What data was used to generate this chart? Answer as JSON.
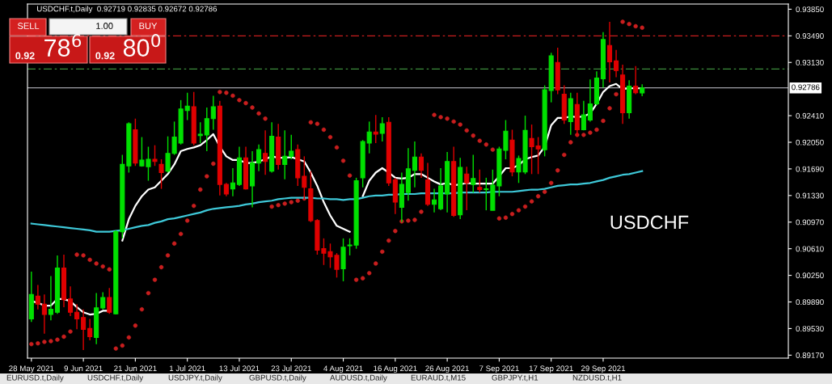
{
  "chart_data": {
    "type": "candlestick",
    "title": "USDCHF.t,Daily  0.92719 0.92835 0.92672 0.92786",
    "categories": [
      "28 May 2021",
      null,
      null,
      null,
      null,
      null,
      null,
      null,
      "9 Jun 2021",
      null,
      null,
      null,
      null,
      null,
      null,
      null,
      "21 Jun 2021",
      null,
      null,
      null,
      null,
      null,
      null,
      null,
      "1 Jul 2021",
      null,
      null,
      null,
      null,
      null,
      null,
      null,
      "13 Jul 2021",
      null,
      null,
      null,
      null,
      null,
      null,
      null,
      "23 Jul 2021",
      null,
      null,
      null,
      null,
      null,
      null,
      null,
      "4 Aug 2021",
      null,
      null,
      null,
      null,
      null,
      null,
      null,
      "16 Aug 2021",
      null,
      null,
      null,
      null,
      null,
      null,
      null,
      "26 Aug 2021",
      null,
      null,
      null,
      null,
      null,
      null,
      null,
      "7 Sep 2021",
      null,
      null,
      null,
      null,
      null,
      null,
      null,
      "17 Sep 2021",
      null,
      null,
      null,
      null,
      null,
      null,
      null,
      "29 Sep 2021",
      null,
      null,
      null,
      null,
      null,
      null
    ],
    "ohlc": [
      [
        0.8966,
        0.903,
        0.8962,
        0.8999
      ],
      [
        0.8997,
        0.9012,
        0.8979,
        0.8986
      ],
      [
        0.8986,
        0.8999,
        0.8946,
        0.8972
      ],
      [
        0.8972,
        0.9024,
        0.8964,
        0.8979
      ],
      [
        0.8975,
        0.9052,
        0.8973,
        0.9035
      ],
      [
        0.9035,
        0.9053,
        0.8982,
        0.8992
      ],
      [
        0.8993,
        0.901,
        0.897,
        0.8975
      ],
      [
        0.8975,
        0.8986,
        0.8952,
        0.8966
      ],
      [
        0.8968,
        0.8979,
        0.8924,
        0.8952
      ],
      [
        0.8953,
        0.8966,
        0.8937,
        0.8942
      ],
      [
        0.8941,
        0.9001,
        0.8932,
        0.8981
      ],
      [
        0.8981,
        0.9002,
        0.8979,
        0.8995
      ],
      [
        0.8995,
        0.9008,
        0.8973,
        0.8975
      ],
      [
        0.8973,
        0.9086,
        0.8972,
        0.9084
      ],
      [
        0.9084,
        0.9188,
        0.9075,
        0.9175
      ],
      [
        0.9173,
        0.9232,
        0.9164,
        0.923
      ],
      [
        0.9222,
        0.9237,
        0.9173,
        0.9177
      ],
      [
        0.9173,
        0.9212,
        0.9172,
        0.9181
      ],
      [
        0.9172,
        0.9199,
        0.9153,
        0.9182
      ],
      [
        0.9182,
        0.9201,
        0.9173,
        0.9179
      ],
      [
        0.9175,
        0.9182,
        0.9142,
        0.9164
      ],
      [
        0.9166,
        0.9213,
        0.9164,
        0.919
      ],
      [
        0.919,
        0.9233,
        0.9188,
        0.9212
      ],
      [
        0.9204,
        0.9262,
        0.9202,
        0.925
      ],
      [
        0.9248,
        0.9272,
        0.9235,
        0.9254
      ],
      [
        0.9253,
        0.9273,
        0.9201,
        0.9204
      ],
      [
        0.9214,
        0.9232,
        0.9204,
        0.9216
      ],
      [
        0.9215,
        0.9252,
        0.9193,
        0.9237
      ],
      [
        0.9237,
        0.9268,
        0.9222,
        0.9253
      ],
      [
        0.9254,
        0.9261,
        0.9133,
        0.9148
      ],
      [
        0.9148,
        0.915,
        0.9132,
        0.9135
      ],
      [
        0.9142,
        0.917,
        0.9132,
        0.915
      ],
      [
        0.9148,
        0.9199,
        0.9146,
        0.9184
      ],
      [
        0.9184,
        0.9199,
        0.9141,
        0.9142
      ],
      [
        0.9146,
        0.9193,
        0.9117,
        0.9177
      ],
      [
        0.9177,
        0.9202,
        0.9166,
        0.9195
      ],
      [
        0.919,
        0.9221,
        0.9161,
        0.9179
      ],
      [
        0.9166,
        0.9232,
        0.9164,
        0.9213
      ],
      [
        0.9212,
        0.923,
        0.9168,
        0.9175
      ],
      [
        0.9175,
        0.9221,
        0.9155,
        0.9186
      ],
      [
        0.9186,
        0.9215,
        0.9182,
        0.9193
      ],
      [
        0.9195,
        0.9202,
        0.9146,
        0.9157
      ],
      [
        0.9159,
        0.9186,
        0.9128,
        0.9144
      ],
      [
        0.9142,
        0.9166,
        0.9097,
        0.9099
      ],
      [
        0.9099,
        0.9101,
        0.9053,
        0.9059
      ],
      [
        0.9061,
        0.9075,
        0.9039,
        0.9055
      ],
      [
        0.9057,
        0.9068,
        0.9035,
        0.905
      ],
      [
        0.9052,
        0.9055,
        0.9022,
        0.9033
      ],
      [
        0.9034,
        0.9075,
        0.9017,
        0.9063
      ],
      [
        0.9065,
        0.9075,
        0.9052,
        0.9066
      ],
      [
        0.9066,
        0.9157,
        0.9061,
        0.9153
      ],
      [
        0.9157,
        0.9208,
        0.9144,
        0.9206
      ],
      [
        0.9204,
        0.9233,
        0.919,
        0.9219
      ],
      [
        0.9219,
        0.9242,
        0.9204,
        0.9216
      ],
      [
        0.9217,
        0.9239,
        0.9206,
        0.923
      ],
      [
        0.9232,
        0.9239,
        0.9146,
        0.915
      ],
      [
        0.9154,
        0.9157,
        0.9108,
        0.9124
      ],
      [
        0.9117,
        0.9164,
        0.9097,
        0.9148
      ],
      [
        0.9137,
        0.9197,
        0.9126,
        0.9169
      ],
      [
        0.9167,
        0.9206,
        0.9144,
        0.9185
      ],
      [
        0.9185,
        0.919,
        0.9157,
        0.9167
      ],
      [
        0.9154,
        0.9177,
        0.9119,
        0.9121
      ],
      [
        0.9121,
        0.9142,
        0.911,
        0.9127
      ],
      [
        0.9115,
        0.917,
        0.9113,
        0.9146
      ],
      [
        0.9135,
        0.9192,
        0.911,
        0.9179
      ],
      [
        0.9179,
        0.9199,
        0.9104,
        0.9106
      ],
      [
        0.9107,
        0.9184,
        0.9101,
        0.9171
      ],
      [
        0.9162,
        0.9172,
        0.9113,
        0.915
      ],
      [
        0.9148,
        0.9188,
        0.9137,
        0.9156
      ],
      [
        0.9144,
        0.9168,
        0.9137,
        0.9141
      ],
      [
        0.9141,
        0.9157,
        0.9113,
        0.9142
      ],
      [
        0.9113,
        0.9168,
        0.9113,
        0.9147
      ],
      [
        0.9146,
        0.9199,
        0.9132,
        0.9196
      ],
      [
        0.9194,
        0.9235,
        0.9182,
        0.922
      ],
      [
        0.9208,
        0.9222,
        0.9159,
        0.9165
      ],
      [
        0.9165,
        0.9187,
        0.915,
        0.9183
      ],
      [
        0.9165,
        0.9241,
        0.9162,
        0.9221
      ],
      [
        0.921,
        0.9229,
        0.9162,
        0.9199
      ],
      [
        0.92,
        0.9212,
        0.9162,
        0.9196
      ],
      [
        0.9195,
        0.9282,
        0.9186,
        0.9276
      ],
      [
        0.9275,
        0.9326,
        0.9259,
        0.9322
      ],
      [
        0.9313,
        0.9333,
        0.927,
        0.9276
      ],
      [
        0.927,
        0.9282,
        0.923,
        0.9235
      ],
      [
        0.9233,
        0.9272,
        0.9215,
        0.9264
      ],
      [
        0.9256,
        0.9272,
        0.9213,
        0.9222
      ],
      [
        0.9222,
        0.9261,
        0.9221,
        0.9242
      ],
      [
        0.9235,
        0.929,
        0.9233,
        0.9257
      ],
      [
        0.9257,
        0.9301,
        0.9255,
        0.9292
      ],
      [
        0.9291,
        0.9354,
        0.9279,
        0.9344
      ],
      [
        0.9336,
        0.9368,
        0.9286,
        0.9314
      ],
      [
        0.9315,
        0.933,
        0.9293,
        0.9302
      ],
      [
        0.9296,
        0.931,
        0.923,
        0.9245
      ],
      [
        0.9245,
        0.9289,
        0.9237,
        0.9281
      ],
      [
        0.9281,
        0.9308,
        0.927,
        0.9272
      ],
      [
        0.92719,
        0.92835,
        0.92672,
        0.92786
      ]
    ],
    "series": [
      {
        "type": "line",
        "color": "#ffffff",
        "values": [
          0.899,
          0.8988,
          0.8984,
          0.8984,
          0.8993,
          0.8993,
          0.899,
          0.8982,
          0.8975,
          0.8972,
          0.8973,
          0.8977,
          0.8977,
          null,
          0.9072,
          0.9101,
          0.9119,
          0.9132,
          0.9141,
          0.9144,
          0.9153,
          0.9162,
          0.9175,
          0.9193,
          0.9196,
          0.9198,
          0.9201,
          0.9208,
          0.9216,
          0.9199,
          0.9186,
          0.9181,
          0.9181,
          0.9177,
          0.9177,
          0.9179,
          0.9182,
          0.9186,
          0.9184,
          0.9184,
          0.9185,
          0.9182,
          0.9179,
          0.9164,
          0.9146,
          0.9124,
          0.9106,
          0.9092,
          0.9088,
          0.9084,
          null,
          0.9132,
          0.9153,
          0.9164,
          0.917,
          0.9164,
          0.9157,
          0.9156,
          0.9157,
          0.9162,
          0.9162,
          0.9157,
          0.9152,
          0.9148,
          0.915,
          0.9147,
          0.9148,
          0.915,
          0.9149,
          0.9149,
          0.9149,
          0.9149,
          0.9159,
          0.917,
          0.917,
          0.9174,
          0.9182,
          0.9185,
          0.9187,
          0.9199,
          0.9228,
          0.9238,
          0.9238,
          0.924,
          0.9239,
          0.924,
          0.9244,
          0.9257,
          0.9273,
          0.9281,
          0.9284,
          0.9277,
          0.9278,
          0.9278,
          0.9278
        ]
      },
      {
        "type": "line",
        "color": "#3ec8d8",
        "values": [
          0.9095,
          0.9094,
          0.9093,
          0.9092,
          0.9091,
          0.909,
          0.9089,
          0.9088,
          0.9087,
          0.9086,
          0.9084,
          0.9084,
          0.9084,
          0.9085,
          0.9086,
          0.9088,
          0.909,
          0.9092,
          0.9093,
          0.9096,
          0.9098,
          0.9101,
          0.9102,
          0.9104,
          0.9106,
          0.9108,
          0.911,
          0.9113,
          0.9115,
          0.9116,
          0.9117,
          0.9118,
          0.9119,
          0.9121,
          0.9122,
          0.9124,
          0.9125,
          0.9126,
          0.9128,
          0.9129,
          0.913,
          0.913,
          0.913,
          0.913,
          0.9129,
          0.9129,
          0.9128,
          0.9128,
          0.9127,
          0.9128,
          0.9128,
          0.913,
          0.9132,
          0.9133,
          0.9133,
          0.9134,
          0.9134,
          0.9135,
          0.9135,
          0.9135,
          0.9136,
          0.9136,
          0.9136,
          0.9136,
          0.9136,
          0.9136,
          0.9137,
          0.9137,
          0.9137,
          0.9137,
          0.9137,
          0.9138,
          0.9138,
          0.9138,
          0.9138,
          0.9139,
          0.914,
          0.9141,
          0.9141,
          0.9142,
          0.9144,
          0.9146,
          0.9147,
          0.9148,
          0.9148,
          0.9149,
          0.915,
          0.9152,
          0.9154,
          0.9157,
          0.9159,
          0.9161,
          0.9162,
          0.9164,
          0.9166
        ]
      },
      {
        "type": "scatter",
        "color": "#c81e1e",
        "marker": "circle",
        "values": [
          0.8932,
          0.8933,
          0.8935,
          0.8936,
          0.8938,
          0.8942,
          0.8949,
          0.9053,
          0.9052,
          0.9046,
          0.9041,
          0.9037,
          0.9033,
          0.8926,
          0.893,
          0.8941,
          0.8957,
          0.8979,
          0.9001,
          0.9019,
          0.9036,
          0.9052,
          0.9068,
          0.9081,
          0.9099,
          0.9119,
          0.9141,
          0.9159,
          0.9176,
          0.9273,
          0.9272,
          0.9268,
          0.9262,
          0.9258,
          0.9252,
          0.9244,
          0.9237,
          0.9118,
          0.912,
          0.9122,
          0.9124,
          0.9126,
          0.9129,
          0.9232,
          0.923,
          0.9222,
          0.9212,
          0.9198,
          0.918,
          0.916,
          0.9019,
          0.9021,
          0.9028,
          0.9041,
          0.9057,
          0.9072,
          0.9085,
          0.9098,
          0.9099,
          0.91,
          0.9111,
          null,
          0.9242,
          0.9239,
          0.9237,
          0.9233,
          0.9229,
          0.9221,
          0.9214,
          0.9207,
          0.9202,
          0.9195,
          0.9102,
          0.9103,
          0.9108,
          0.9113,
          0.9118,
          0.9125,
          0.9132,
          0.9138,
          0.915,
          0.9167,
          0.9188,
          0.9205,
          0.9215,
          0.9215,
          0.9218,
          0.9222,
          0.9234,
          0.9251,
          0.927,
          0.9368,
          0.9365,
          0.9362,
          0.936
        ]
      }
    ],
    "ylim": [
      0.8913,
      0.9392
    ],
    "yticks": [
      {
        "value": 0.9385,
        "label": "0.93850"
      },
      {
        "value": 0.9349,
        "label": "0.93490"
      },
      {
        "value": 0.9313,
        "label": "0.93130"
      },
      {
        "value": 0.9241,
        "label": "0.92410"
      },
      {
        "value": 0.9205,
        "label": "0.92050"
      },
      {
        "value": 0.9169,
        "label": "0.91690"
      },
      {
        "value": 0.9133,
        "label": "0.91330"
      },
      {
        "value": 0.9097,
        "label": "0.90970"
      },
      {
        "value": 0.9061,
        "label": "0.90610"
      },
      {
        "value": 0.9025,
        "label": "0.90250"
      },
      {
        "value": 0.8989,
        "label": "0.89890"
      },
      {
        "value": 0.8953,
        "label": "0.89530"
      },
      {
        "value": 0.8917,
        "label": "0.89170"
      }
    ],
    "ref_lines": [
      {
        "axis": "y",
        "value": 0.9349,
        "color": "#c81e1e",
        "line_style": "dashed"
      },
      {
        "axis": "y",
        "value": 0.9304,
        "color": "#3c8c3c",
        "line_style": "dashed"
      },
      {
        "axis": "y",
        "value": 0.92786,
        "color": "#a0a0a8",
        "line_style": "solid",
        "label": "0.92786"
      }
    ],
    "grid": false,
    "legend": false,
    "annotations": [
      "USDCHF",
      "SELL",
      "1.00",
      "BUY",
      "0.92",
      "78$^{6}$",
      "0.92",
      "80$^{0}$",
      "EURUSD.t,Daily",
      "USDCHF.t,Daily",
      "USDJPY.t,Daily",
      "GBPUSD.t,Daily",
      "AUDUSD.t,Daily",
      "EURAUD.t,M15",
      "GBPJPY.t,H1",
      "NZDUSD.t,H1"
    ]
  }
}
